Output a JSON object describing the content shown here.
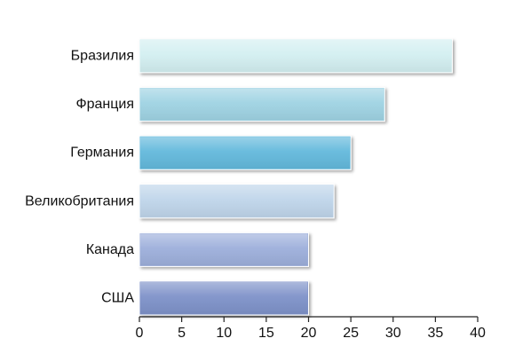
{
  "chart_data": {
    "type": "bar",
    "orientation": "horizontal",
    "categories": [
      "Бразилия",
      "Франция",
      "Германия",
      "Великобритания",
      "Канада",
      "США"
    ],
    "values": [
      37,
      29,
      25,
      23,
      20,
      20
    ],
    "colors": [
      "#d3eff1",
      "#9fd3e3",
      "#64b9dc",
      "#bfd5ea",
      "#9dafdb",
      "#7e92c9"
    ],
    "xticks": [
      "0",
      "5",
      "10",
      "15",
      "20",
      "25",
      "30",
      "35",
      "40"
    ],
    "xlim": [
      0,
      40
    ],
    "grid": false,
    "title": "",
    "xlabel": "",
    "ylabel": ""
  }
}
